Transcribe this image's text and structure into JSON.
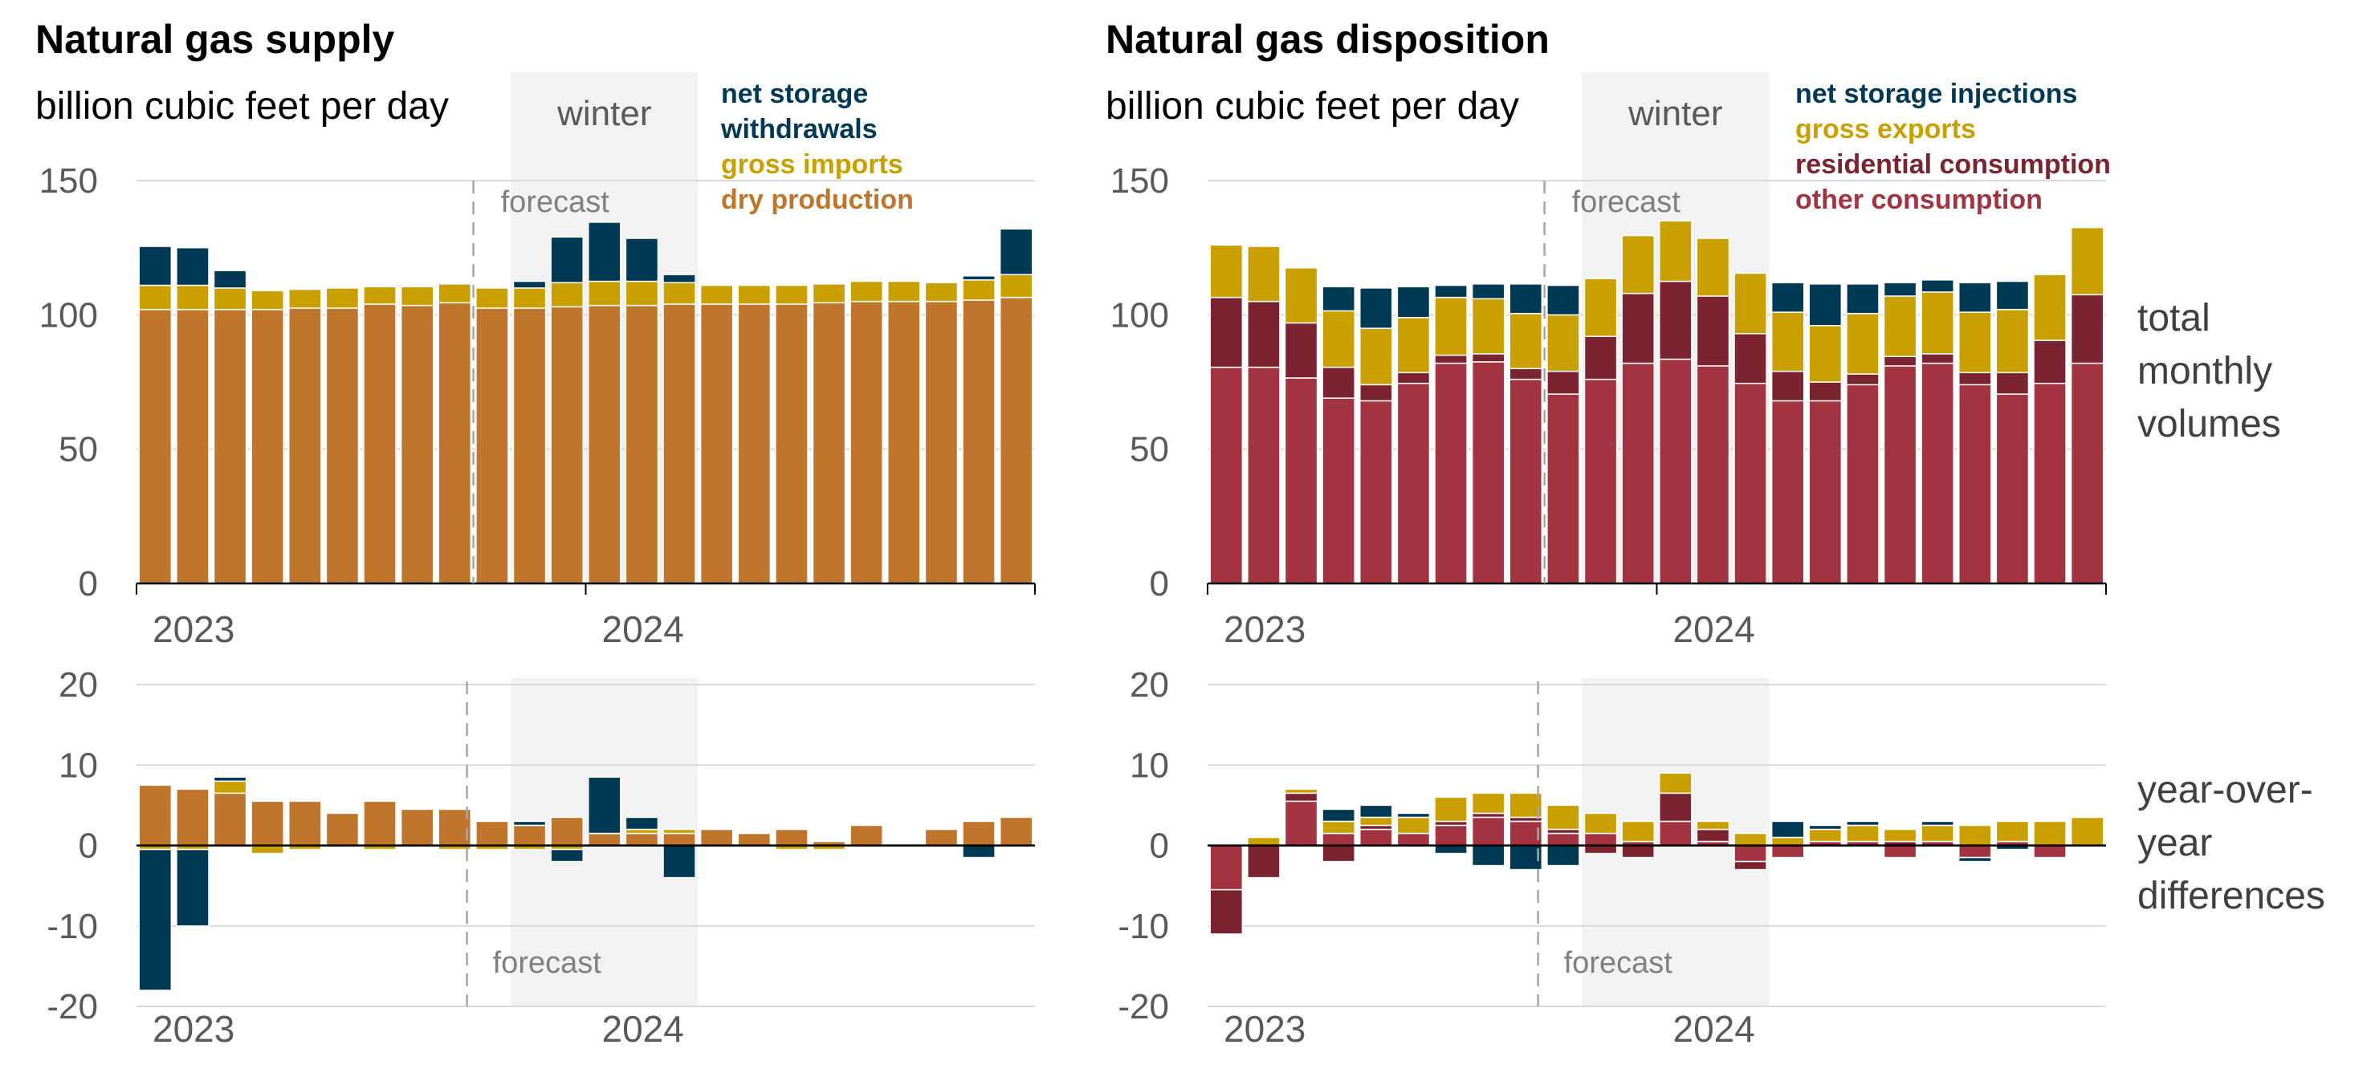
{
  "annotations": {
    "winter": "winter",
    "forecast": "forecast",
    "total_monthly_volumes": [
      "total",
      "monthly",
      "volumes"
    ],
    "year_over_year": [
      "year-over-",
      "year",
      "differences"
    ]
  },
  "colors": {
    "dry_production": "#bf762c",
    "gross_imports": "#c9a000",
    "net_storage_withdrawals": "#003953",
    "other_consumption": "#a33340",
    "residential_consumption": "#7b2330",
    "gross_exports": "#c9a000",
    "net_storage_injections": "#003953",
    "axis": "#000000",
    "grid": "#d9d9d9",
    "winter_band": "#f2f2f2"
  },
  "chart_data": [
    {
      "id": "supply_total",
      "type": "bar",
      "stacked": true,
      "title": "Natural gas supply",
      "ylabel": "billion cubic feet per day",
      "ylim": [
        0,
        150
      ],
      "yticks": [
        0,
        50,
        100,
        150
      ],
      "x_year_labels": [
        {
          "label": "2023",
          "index": 0
        },
        {
          "label": "2024",
          "index": 12
        }
      ],
      "forecast_start_index": 9,
      "winter_months": [
        10,
        14
      ],
      "legend": [
        "net storage",
        "withdrawals",
        "gross imports",
        "dry production"
      ],
      "series": [
        {
          "name": "dry production",
          "color_key": "dry_production",
          "values": [
            102,
            102,
            102,
            102,
            102.5,
            102.5,
            104,
            103.5,
            104.5,
            102.5,
            102.5,
            103,
            103.5,
            103.5,
            104,
            104,
            104,
            104,
            104.5,
            105,
            105,
            105,
            105.5,
            106.5
          ]
        },
        {
          "name": "gross imports",
          "color_key": "gross_imports",
          "values": [
            9,
            9,
            8,
            7,
            7,
            7.5,
            6.5,
            7,
            7,
            7.5,
            7.5,
            9,
            9,
            9,
            8,
            7,
            7,
            7,
            7,
            7.5,
            7.5,
            7,
            7.5,
            8.5
          ]
        },
        {
          "name": "net storage withdrawals",
          "color_key": "net_storage_withdrawals",
          "values": [
            14.5,
            14,
            6.5,
            0,
            0,
            0,
            0,
            0,
            0,
            0,
            2.5,
            17,
            22,
            16,
            3,
            0,
            0,
            0,
            0,
            0,
            0,
            0,
            1.5,
            17
          ]
        }
      ]
    },
    {
      "id": "disposition_total",
      "type": "bar",
      "stacked": true,
      "title": "Natural gas disposition",
      "ylabel": "billion cubic feet per day",
      "ylim": [
        0,
        150
      ],
      "yticks": [
        0,
        50,
        100,
        150
      ],
      "x_year_labels": [
        {
          "label": "2023",
          "index": 0
        },
        {
          "label": "2024",
          "index": 12
        }
      ],
      "forecast_start_index": 9,
      "winter_months": [
        10,
        14
      ],
      "legend": [
        "net storage injections",
        "gross exports",
        "residential consumption",
        "other consumption"
      ],
      "series": [
        {
          "name": "other consumption",
          "color_key": "other_consumption",
          "values": [
            80.5,
            80.5,
            76.5,
            69,
            68,
            74.5,
            82,
            82.5,
            76,
            70.5,
            76,
            82,
            83.5,
            81,
            74.5,
            68,
            68,
            74,
            81,
            82,
            74,
            70.5,
            74.5,
            82
          ]
        },
        {
          "name": "residential consumption",
          "color_key": "residential_consumption",
          "values": [
            26,
            24.5,
            20.5,
            11.5,
            6,
            4,
            3,
            3,
            4,
            8.5,
            16,
            26,
            29,
            26,
            18.5,
            11,
            7,
            4,
            3.5,
            3.5,
            4.5,
            8,
            16,
            25.5
          ]
        },
        {
          "name": "gross exports",
          "color_key": "gross_exports",
          "values": [
            19.5,
            20.5,
            20.5,
            21,
            21,
            20.5,
            21.5,
            20.5,
            20.5,
            21,
            21.5,
            21.5,
            22.5,
            21.5,
            22.5,
            22,
            21,
            22.5,
            22.5,
            23,
            22.5,
            23.5,
            24.5,
            25
          ]
        },
        {
          "name": "net storage injections",
          "color_key": "net_storage_injections",
          "values": [
            0,
            0,
            0,
            9,
            15,
            11.5,
            4.5,
            5.5,
            11,
            11,
            0,
            0,
            0,
            0,
            0,
            11,
            15.5,
            11,
            5,
            4.5,
            11,
            10.5,
            0,
            0
          ]
        }
      ]
    },
    {
      "id": "supply_yoy",
      "type": "bar",
      "stacked": true,
      "ylim": [
        -20,
        20
      ],
      "yticks": [
        -20,
        -10,
        0,
        10,
        20
      ],
      "x_year_labels": [
        {
          "label": "2023",
          "index": 0
        },
        {
          "label": "2024",
          "index": 12
        }
      ],
      "forecast_start_index": 9,
      "winter_months": [
        10,
        14
      ],
      "series": [
        {
          "name": "dry production",
          "color_key": "dry_production",
          "values": [
            7.5,
            7,
            6.5,
            5.5,
            5.5,
            4,
            5.5,
            4.5,
            4.5,
            3,
            2.5,
            3.5,
            1.5,
            1.5,
            1.5,
            2,
            1.5,
            2,
            0.5,
            2.5,
            0,
            2,
            3,
            3.5
          ]
        },
        {
          "name": "gross imports",
          "color_key": "gross_imports",
          "values": [
            -0.5,
            -0.5,
            1.5,
            -1,
            -0.5,
            0,
            -0.5,
            0,
            -0.5,
            -0.5,
            -0.5,
            -0.5,
            0,
            0.5,
            0.5,
            0,
            0,
            -0.5,
            -0.5,
            0,
            0,
            0,
            0,
            0
          ]
        },
        {
          "name": "net storage withdrawals",
          "color_key": "net_storage_withdrawals",
          "values": [
            -17.5,
            -9.5,
            0.5,
            0,
            0,
            0,
            0,
            0,
            0,
            0,
            0.5,
            -1.5,
            7,
            1.5,
            -4,
            0,
            0,
            0,
            0,
            0,
            0,
            0,
            -1.5,
            0
          ]
        }
      ]
    },
    {
      "id": "disposition_yoy",
      "type": "bar",
      "stacked": true,
      "ylim": [
        -20,
        20
      ],
      "yticks": [
        -20,
        -10,
        0,
        10,
        20
      ],
      "x_year_labels": [
        {
          "label": "2023",
          "index": 0
        },
        {
          "label": "2024",
          "index": 12
        }
      ],
      "forecast_start_index": 9,
      "winter_months": [
        10,
        14
      ],
      "series": [
        {
          "name": "other consumption",
          "color_key": "other_consumption",
          "values": [
            -5.5,
            0,
            5.5,
            1.5,
            2,
            1.5,
            2.5,
            3.5,
            3,
            1.5,
            1.5,
            0.5,
            3,
            0.5,
            -2,
            -1.5,
            0.5,
            0.5,
            -1.5,
            0.5,
            -1.5,
            0.5,
            -1.5,
            0
          ]
        },
        {
          "name": "residential consumption",
          "color_key": "residential_consumption",
          "values": [
            -5.5,
            -4,
            1,
            -2,
            0.5,
            0,
            0.5,
            0.5,
            0.5,
            0.5,
            -1,
            -1.5,
            3.5,
            1.5,
            -1,
            0,
            0,
            0,
            0.5,
            0,
            0,
            0,
            0,
            0
          ]
        },
        {
          "name": "gross exports",
          "color_key": "gross_exports",
          "values": [
            0,
            1,
            0.5,
            1.5,
            1,
            2,
            3,
            2.5,
            3,
            3,
            2.5,
            2.5,
            2.5,
            1,
            1.5,
            1,
            1.5,
            2,
            1.5,
            2,
            2.5,
            2.5,
            3,
            3.5
          ]
        },
        {
          "name": "net storage injections",
          "color_key": "net_storage_injections",
          "values": [
            0,
            0,
            0,
            1.5,
            1.5,
            0.5,
            -1,
            -2.5,
            -3,
            -2.5,
            0,
            0,
            0,
            0,
            0,
            2,
            0.5,
            0.5,
            0,
            0.5,
            -0.5,
            -0.5,
            0,
            0
          ]
        }
      ]
    }
  ]
}
